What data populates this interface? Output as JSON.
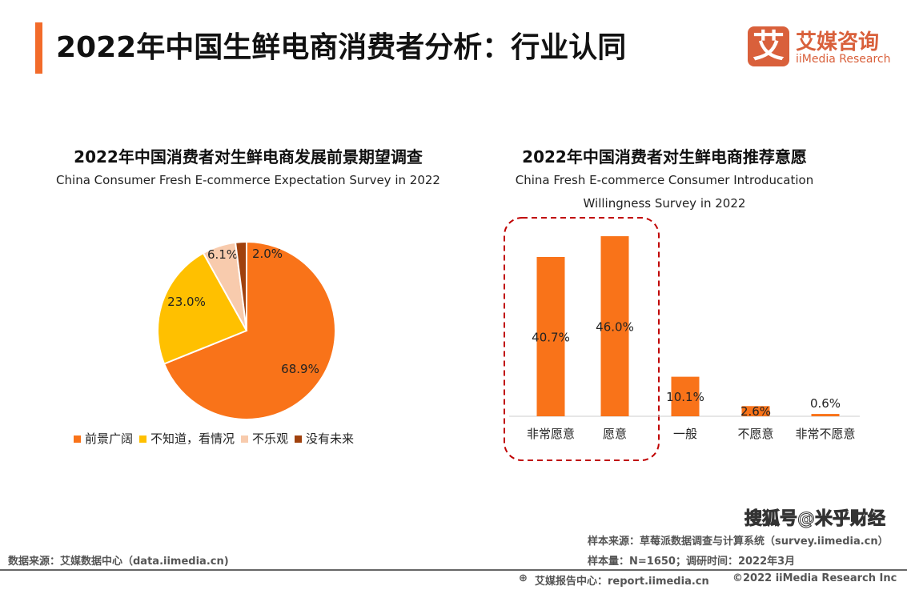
{
  "header": {
    "title": "2022年中国生鲜电商消费者分析：行业认同",
    "logo_mark": "艾",
    "logo_cn": "艾媒咨询",
    "logo_en": "iiMedia Research"
  },
  "chart_data": [
    {
      "type": "pie",
      "title": "2022年中国消费者对生鲜电商发展前景期望调查",
      "subtitle": "China Consumer Fresh E-commerce Expectation Survey in 2022",
      "categories": [
        "前景广阔",
        "不知道，看情况",
        "不乐观",
        "没有未来"
      ],
      "values": [
        68.9,
        23.0,
        6.1,
        2.0
      ],
      "labels": [
        "68.9%",
        "23.0%",
        "6.1%",
        "2.0%"
      ],
      "colors": [
        "#F97319",
        "#FFC000",
        "#F8CBAD",
        "#A0410D"
      ],
      "legend": "bottom"
    },
    {
      "type": "bar",
      "title": "2022年中国消费者对生鲜电商推荐意愿",
      "subtitle": "China Fresh E-commerce Consumer Introducation Willingness Survey in 2022",
      "categories": [
        "非常愿意",
        "愿意",
        "一般",
        "不愿意",
        "非常不愿意"
      ],
      "values": [
        40.7,
        46.0,
        10.1,
        2.6,
        0.6
      ],
      "labels": [
        "40.7%",
        "46.0%",
        "10.1%",
        "2.6%",
        "0.6%"
      ],
      "color": "#F97319",
      "highlight": "dashed red box around 非常愿意 and 愿意",
      "highlight_color": "#C00000"
    }
  ],
  "footer": {
    "left_source": "数据来源：艾媒数据中心（data.iimedia.cn)",
    "sample_source": "样本来源：草莓派数据调查与计算系统（survey.iimedia.cn）",
    "sample_info": "样本量：N=1650；调研时间：2022年3月",
    "report_center": "艾媒报告中心：report.iimedia.cn",
    "copyright": "©2022  iiMedia Research  Inc",
    "watermark": "搜狐号@米乎财经"
  }
}
